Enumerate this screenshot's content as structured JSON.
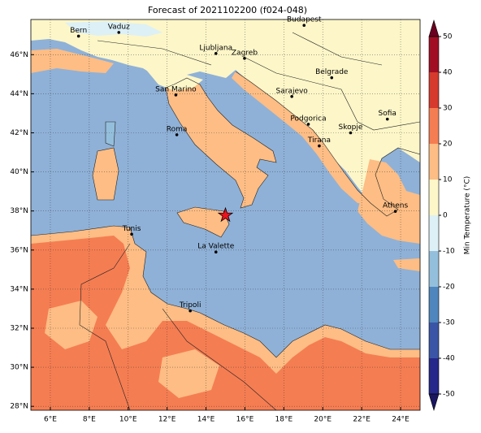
{
  "title": "Forecast of 2021102200 (f024-048)",
  "map": {
    "lon_range": [
      5,
      25
    ],
    "lat_range": [
      27.8,
      47.8
    ],
    "lon_ticks": [
      {
        "value": 6,
        "label": "6°E"
      },
      {
        "value": 8,
        "label": "8°E"
      },
      {
        "value": 10,
        "label": "10°E"
      },
      {
        "value": 12,
        "label": "12°E"
      },
      {
        "value": 14,
        "label": "14°E"
      },
      {
        "value": 16,
        "label": "16°E"
      },
      {
        "value": 18,
        "label": "18°E"
      },
      {
        "value": 20,
        "label": "20°E"
      },
      {
        "value": 22,
        "label": "22°E"
      },
      {
        "value": 24,
        "label": "24°E"
      }
    ],
    "lat_ticks": [
      {
        "value": 28,
        "label": "28°N"
      },
      {
        "value": 30,
        "label": "30°N"
      },
      {
        "value": 32,
        "label": "32°N"
      },
      {
        "value": 34,
        "label": "34°N"
      },
      {
        "value": 36,
        "label": "36°N"
      },
      {
        "value": 38,
        "label": "38°N"
      },
      {
        "value": 40,
        "label": "40°N"
      },
      {
        "value": 42,
        "label": "42°N"
      },
      {
        "value": 44,
        "label": "44°N"
      },
      {
        "value": 46,
        "label": "46°N"
      }
    ],
    "grid": true,
    "cities": [
      {
        "name": "Bern",
        "lon": 7.45,
        "lat": 46.95
      },
      {
        "name": "Vaduz",
        "lon": 9.52,
        "lat": 47.14
      },
      {
        "name": "Budapest",
        "lon": 19.04,
        "lat": 47.5
      },
      {
        "name": "Ljubljana",
        "lon": 14.51,
        "lat": 46.06
      },
      {
        "name": "Zagreb",
        "lon": 15.98,
        "lat": 45.81
      },
      {
        "name": "Belgrade",
        "lon": 20.46,
        "lat": 44.82
      },
      {
        "name": "San Marino",
        "lon": 12.45,
        "lat": 43.94
      },
      {
        "name": "Sarajevo",
        "lon": 18.41,
        "lat": 43.86
      },
      {
        "name": "Sofia",
        "lon": 23.32,
        "lat": 42.7
      },
      {
        "name": "Roma",
        "lon": 12.5,
        "lat": 41.9
      },
      {
        "name": "Podgorica",
        "lon": 19.26,
        "lat": 42.44
      },
      {
        "name": "Skopje",
        "lon": 21.43,
        "lat": 42.0
      },
      {
        "name": "Tirana",
        "lon": 19.82,
        "lat": 41.33
      },
      {
        "name": "Athens",
        "lon": 23.73,
        "lat": 37.98
      },
      {
        "name": "Tunis",
        "lon": 10.18,
        "lat": 36.81
      },
      {
        "name": "La Valette",
        "lon": 14.51,
        "lat": 35.9
      },
      {
        "name": "Tripoli",
        "lon": 13.19,
        "lat": 32.89
      }
    ],
    "marker": {
      "lon": 15.0,
      "lat": 37.78,
      "color": "#e8141e"
    }
  },
  "colorbar": {
    "label": "Min Temperature (°C)",
    "levels": [
      -50,
      -40,
      -30,
      -20,
      -10,
      0,
      10,
      20,
      30,
      40,
      50
    ],
    "colors": [
      "#25278a",
      "#3b55a6",
      "#4f86bd",
      "#94bfdc",
      "#dcf0f6",
      "#fdf6c8",
      "#fdbd84",
      "#f57d52",
      "#d63a2c",
      "#a10e24"
    ],
    "extend_colors": [
      "#1b1661",
      "#6b0020"
    ],
    "ticks": [
      50,
      40,
      30,
      20,
      10,
      0,
      -10,
      -20,
      -30,
      -40,
      -50
    ]
  }
}
